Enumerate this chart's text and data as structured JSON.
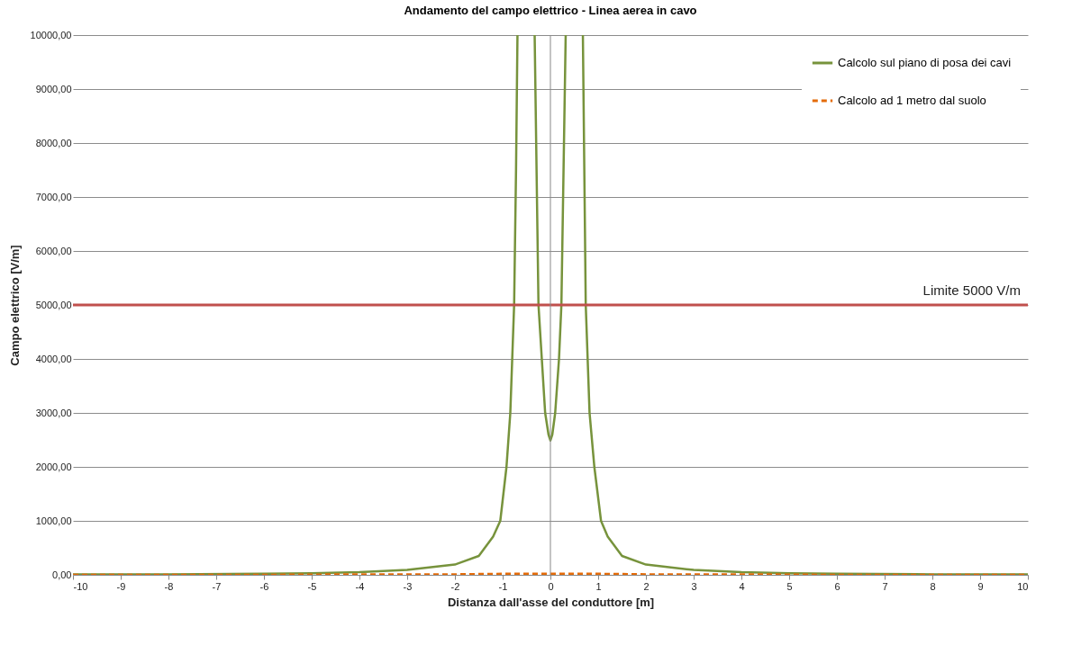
{
  "chart_data": {
    "type": "line",
    "title": "Andamento del campo elettrico - Linea aerea in cavo",
    "xlabel": "Distanza dall'asse del conduttore [m]",
    "ylabel": "Campo elettrico [V/m]",
    "xlim": [
      -10,
      10
    ],
    "xticks": [
      -10,
      -9,
      -8,
      -7,
      -6,
      -5,
      -4,
      -3,
      -2,
      -1,
      0,
      1,
      2,
      3,
      4,
      5,
      6,
      7,
      8,
      9,
      10
    ],
    "ylim": [
      0,
      10000
    ],
    "yticks": [
      {
        "value": 0,
        "label": "0,00"
      },
      {
        "value": 1000,
        "label": "1000,00"
      },
      {
        "value": 2000,
        "label": "2000,00"
      },
      {
        "value": 3000,
        "label": "3000,00"
      },
      {
        "value": 4000,
        "label": "4000,00"
      },
      {
        "value": 5000,
        "label": "5000,00"
      },
      {
        "value": 6000,
        "label": "6000,00"
      },
      {
        "value": 7000,
        "label": "7000,00"
      },
      {
        "value": 8000,
        "label": "8000,00"
      },
      {
        "value": 9000,
        "label": "9000,00"
      },
      {
        "value": 10000,
        "label": "10000,00"
      }
    ],
    "grid": "y",
    "legend": "top right",
    "series": [
      {
        "name": "Calcolo sul piano di posa dei cavi",
        "color": "#77933c",
        "line_style": "solid",
        "x": [
          -10,
          -8,
          -6,
          -5,
          -4,
          -3,
          -2,
          -1.5,
          -1.2,
          -1.05,
          -0.92,
          -0.84,
          -0.76,
          -0.72,
          -0.69,
          -0.5,
          -0.33,
          -0.25,
          -0.18,
          -0.11,
          -0.04,
          0,
          0.04,
          0.1,
          0.18,
          0.23,
          0.32,
          0.5,
          0.68,
          0.74,
          0.82,
          0.92,
          1.06,
          1.2,
          1.5,
          2,
          3,
          4,
          5,
          6,
          8,
          10
        ],
        "values": [
          10,
          10,
          20,
          30,
          50,
          90,
          190,
          350,
          710,
          1000,
          2000,
          3000,
          5000,
          7500,
          10000,
          null,
          10000,
          5000,
          4000,
          3000,
          2600,
          2490,
          2600,
          3000,
          4000,
          5000,
          10000,
          null,
          10000,
          5000,
          3000,
          2000,
          1000,
          710,
          350,
          190,
          90,
          50,
          30,
          20,
          10,
          10
        ]
      },
      {
        "name": "Calcolo ad 1 metro dal suolo",
        "color": "#e46c0a",
        "line_style": "dashed",
        "x": [
          -10,
          -6,
          -4,
          -2,
          -1,
          0,
          1,
          2,
          4,
          6,
          10
        ],
        "values": [
          0,
          0,
          10,
          10,
          20,
          20,
          20,
          10,
          10,
          0,
          0
        ]
      }
    ],
    "ref_lines": [
      {
        "axis": "y",
        "value": 5000,
        "label": "Limite 5000 V/m",
        "color": "#c0504d"
      },
      {
        "axis": "x",
        "value": 0,
        "color": "#888888"
      }
    ]
  }
}
